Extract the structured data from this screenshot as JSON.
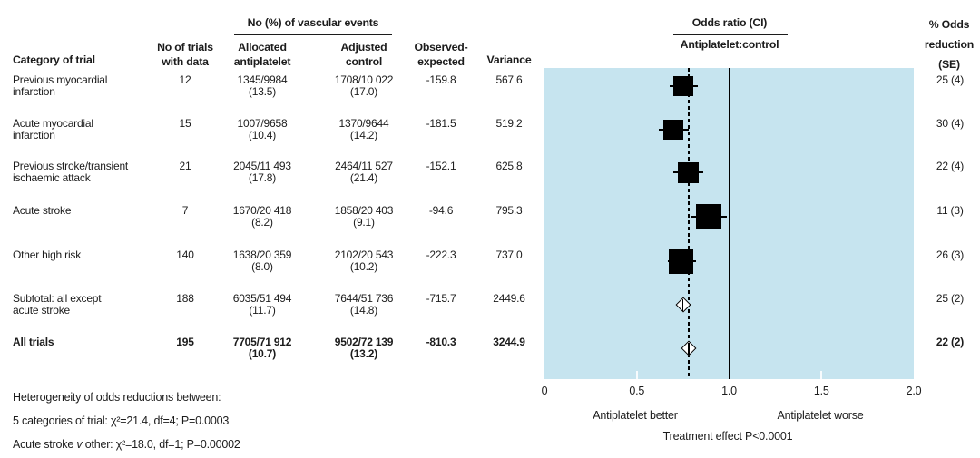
{
  "colors": {
    "plot_bg": "#c6e4ef",
    "marker": "#000000",
    "text": "#1c1c1c"
  },
  "columns": {
    "category": "Category of trial",
    "trials": "No of trials\nwith data",
    "events_group": "No (%) of vascular events",
    "allocated": "Allocated\nantiplatelet",
    "adjusted": "Adjusted\ncontrol",
    "oe": "Observed-\nexpected",
    "variance": "Variance",
    "or_group": "Odds ratio (CI)",
    "or_sub": "Antiplatelet:control",
    "reduction": "% Odds\nreduction\n(SE)"
  },
  "table": {
    "rows": [
      {
        "category": "Previous myocardial\n infarction",
        "trials": "12",
        "allocated": "1345/9984\n(13.5)",
        "adjusted": "1708/10 022\n(17.0)",
        "oe": "-159.8",
        "variance": "567.6",
        "reduction": "25 (4)",
        "bold": false
      },
      {
        "category": "Acute myocardial\n infarction",
        "trials": "15",
        "allocated": "1007/9658\n(10.4)",
        "adjusted": "1370/9644\n(14.2)",
        "oe": "-181.5",
        "variance": "519.2",
        "reduction": "30 (4)",
        "bold": false
      },
      {
        "category": "Previous stroke/transient\n ischaemic attack",
        "trials": "21",
        "allocated": "2045/11 493\n(17.8)",
        "adjusted": "2464/11 527\n(21.4)",
        "oe": "-152.1",
        "variance": "625.8",
        "reduction": "22 (4)",
        "bold": false
      },
      {
        "category": "Acute stroke",
        "trials": "7",
        "allocated": "1670/20 418\n(8.2)",
        "adjusted": "1858/20 403\n(9.1)",
        "oe": "-94.6",
        "variance": "795.3",
        "reduction": "11 (3)",
        "bold": false
      },
      {
        "category": "Other high risk",
        "trials": "140",
        "allocated": "1638/20 359\n(8.0)",
        "adjusted": "2102/20 543\n(10.2)",
        "oe": "-222.3",
        "variance": "737.0",
        "reduction": "26 (3)",
        "bold": false
      },
      {
        "category": "Subtotal: all except\n acute stroke",
        "trials": "188",
        "allocated": "6035/51 494\n(11.7)",
        "adjusted": "7644/51 736\n(14.8)",
        "oe": "-715.7",
        "variance": "2449.6",
        "reduction": "25 (2)",
        "bold": false
      },
      {
        "category": "All trials",
        "trials": "195",
        "allocated": "7705/71 912\n(10.7)",
        "adjusted": "9502/72 139\n(13.2)",
        "oe": "-810.3",
        "variance": "3244.9",
        "reduction": "22 (2)",
        "bold": true
      }
    ]
  },
  "chart_data": {
    "type": "forest",
    "title": "Odds ratio (CI) Antiplatelet:control",
    "xlabel": "",
    "xlim": [
      0,
      2
    ],
    "xticks": [
      0,
      0.5,
      1.0,
      1.5,
      2.0
    ],
    "xtick_labels": [
      "0",
      "0.5",
      "1.0",
      "1.5",
      "2.0"
    ],
    "reference_line": 1.0,
    "overall_dashed_line": 0.78,
    "better_label": "Antiplatelet better",
    "worse_label": "Antiplatelet worse",
    "effect_label": "Treatment effect P<0.0001",
    "points": [
      {
        "label": "Previous myocardial infarction",
        "or": 0.75,
        "ci": [
          0.68,
          0.83
        ],
        "odds_reduction_pct": 25,
        "se": 4,
        "marker": "square",
        "size": 22
      },
      {
        "label": "Acute myocardial infarction",
        "or": 0.7,
        "ci": [
          0.62,
          0.78
        ],
        "odds_reduction_pct": 30,
        "se": 4,
        "marker": "square",
        "size": 22
      },
      {
        "label": "Previous stroke/transient ischaemic attack",
        "or": 0.78,
        "ci": [
          0.7,
          0.86
        ],
        "odds_reduction_pct": 22,
        "se": 4,
        "marker": "square",
        "size": 23
      },
      {
        "label": "Acute stroke",
        "or": 0.89,
        "ci": [
          0.79,
          0.99
        ],
        "odds_reduction_pct": 11,
        "se": 3,
        "marker": "square",
        "size": 28
      },
      {
        "label": "Other high risk",
        "or": 0.74,
        "ci": [
          0.67,
          0.82
        ],
        "odds_reduction_pct": 26,
        "se": 3,
        "marker": "square",
        "size": 27
      },
      {
        "label": "Subtotal: all except acute stroke",
        "or": 0.75,
        "ci": [
          0.72,
          0.79
        ],
        "odds_reduction_pct": 25,
        "se": 2,
        "marker": "diamond",
        "size": 10
      },
      {
        "label": "All trials",
        "or": 0.78,
        "ci": [
          0.75,
          0.81
        ],
        "odds_reduction_pct": 22,
        "se": 2,
        "marker": "diamond",
        "size": 10
      }
    ]
  },
  "footer": {
    "line1": "Heterogeneity of odds reductions between:",
    "line2": "5 categories of trial: χ²=21.4, df=4; P=0.0003",
    "line3_a": "Acute stroke ",
    "line3_v": "v",
    "line3_b": " other: χ²=18.0, df=1; P=0.00002"
  }
}
